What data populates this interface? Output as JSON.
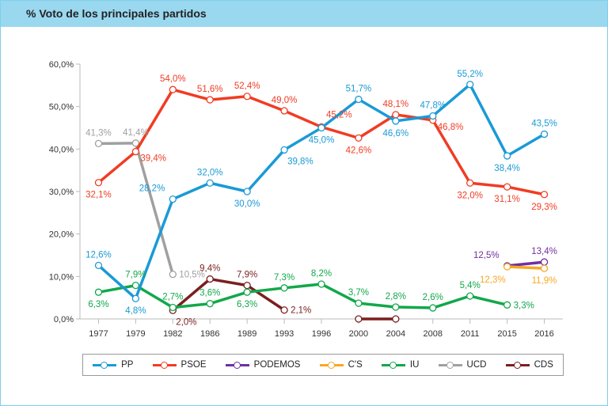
{
  "header": {
    "title": "% Voto de los principales partidos"
  },
  "chart_data": {
    "type": "line",
    "title": "% Voto de los principales partidos",
    "categories": [
      "1977",
      "1979",
      "1982",
      "1986",
      "1989",
      "1993",
      "1996",
      "2000",
      "2004",
      "2008",
      "2011",
      "2015",
      "2016"
    ],
    "ylim": [
      0,
      60
    ],
    "yticks": [
      "0,0%",
      "10,0%",
      "20,0%",
      "30,0%",
      "40,0%",
      "50,0%",
      "60,0%"
    ],
    "grid": false,
    "legend": "bottom",
    "series": [
      {
        "name": "PP",
        "color": "#1a9ad6",
        "values": [
          12.6,
          4.8,
          28.2,
          32.0,
          30.0,
          39.8,
          45.0,
          51.7,
          46.6,
          47.8,
          55.2,
          38.4,
          43.5
        ],
        "labels": [
          "12,6%",
          "4,8%",
          "28,2%",
          "32,0%",
          "30,0%",
          "39,8%",
          "45,0%",
          "51,7%",
          "46,6%",
          "47,8%",
          "55,2%",
          "38,4%",
          "43,5%"
        ]
      },
      {
        "name": "PSOE",
        "color": "#f03c24",
        "values": [
          32.1,
          39.4,
          54.0,
          51.6,
          52.4,
          49.0,
          45.2,
          42.6,
          48.1,
          46.8,
          32.0,
          31.1,
          29.3
        ],
        "labels": [
          "32,1%",
          "39,4%",
          "54,0%",
          "51,6%",
          "52,4%",
          "49,0%",
          "45,2%",
          "42,6%",
          "48,1%",
          "46,8%",
          "32,0%",
          "31,1%",
          "29,3%"
        ]
      },
      {
        "name": "PODEMOS",
        "color": "#7030a0",
        "values": [
          null,
          null,
          null,
          null,
          null,
          null,
          null,
          null,
          null,
          null,
          null,
          12.5,
          13.4
        ],
        "labels": [
          null,
          null,
          null,
          null,
          null,
          null,
          null,
          null,
          null,
          null,
          null,
          "12,5%",
          "13,4%"
        ]
      },
      {
        "name": "C'S",
        "color": "#f7a823",
        "values": [
          null,
          null,
          null,
          null,
          null,
          null,
          null,
          null,
          null,
          null,
          null,
          12.3,
          11.9
        ],
        "labels": [
          null,
          null,
          null,
          null,
          null,
          null,
          null,
          null,
          null,
          null,
          null,
          "12,3%",
          "11,9%"
        ]
      },
      {
        "name": "IU",
        "color": "#12a84a",
        "values": [
          6.3,
          7.9,
          2.7,
          3.6,
          6.3,
          7.3,
          8.2,
          3.7,
          2.8,
          2.6,
          5.4,
          3.3,
          null
        ],
        "labels": [
          "6,3%",
          "7,9%",
          "2,7%",
          "3,6%",
          "6,3%",
          "7,3%",
          "8,2%",
          "3,7%",
          "2,8%",
          "2,6%",
          "5,4%",
          "3,3%",
          null
        ]
      },
      {
        "name": "UCD",
        "color": "#a0a0a0",
        "values": [
          41.3,
          41.4,
          10.5,
          null,
          null,
          null,
          null,
          null,
          null,
          null,
          null,
          null,
          null
        ],
        "labels": [
          "41,3%",
          "41,4%",
          "10,5%",
          null,
          null,
          null,
          null,
          null,
          null,
          null,
          null,
          null,
          null
        ]
      },
      {
        "name": "CDS",
        "color": "#7b1f1f",
        "values": [
          null,
          null,
          2.0,
          9.4,
          7.9,
          2.1,
          null,
          0,
          0,
          null,
          null,
          null,
          null
        ],
        "labels": [
          null,
          null,
          "2,0%",
          "9,4%",
          "7,9%",
          "2,1%",
          null,
          null,
          null,
          null,
          null,
          null,
          null
        ]
      }
    ]
  }
}
